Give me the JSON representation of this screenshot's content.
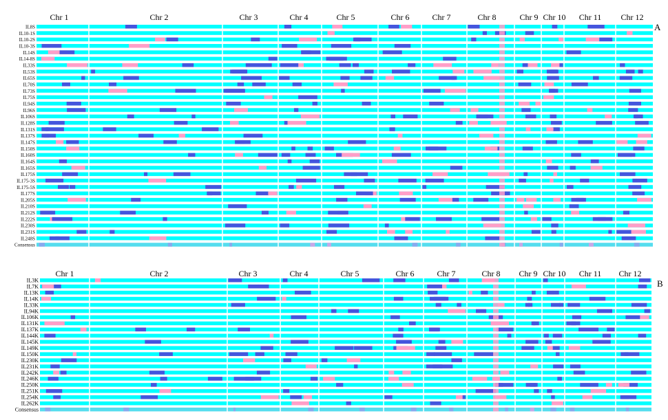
{
  "colors": {
    "background": "#ffffff",
    "base": "#00ffff",
    "introgression": "#4455dd",
    "heterozygous": "#ff9fc8",
    "separator": "#ffffff"
  },
  "panels": [
    {
      "label": "A",
      "chromosomes": [
        "Chr 1",
        "Chr 2",
        "Chr 3",
        "Chr 4",
        "Chr 5",
        "Chr 6",
        "Chr 7",
        "Chr 8",
        "Chr 9",
        "Chr 10",
        "Chr 11",
        "Chr 12"
      ],
      "lines": [
        "IL8S",
        "IL10-1S",
        "IL10-2S",
        "IL10-3S",
        "IL14S",
        "IL14-8S",
        "IL33S",
        "IL53S",
        "IL65S",
        "IL70S",
        "IL73S",
        "IL75S",
        "IL94S",
        "IL96S",
        "IL106S",
        "IL128S",
        "IL131S",
        "IL137S",
        "IL147S",
        "IL150S",
        "IL160S",
        "IL164S",
        "IL165S",
        "IL175S",
        "IL175-3S",
        "IL175-5S",
        "IL177S",
        "IL205S",
        "IL210S",
        "IL212S",
        "IL222S",
        "IL230S",
        "IL231S",
        "IL248S",
        "Consensus"
      ]
    },
    {
      "label": "B",
      "chromosomes": [
        "Chr 1",
        "Chr 2",
        "Chr 3",
        "Chr 4",
        "Chr 5",
        "Chr 6",
        "Chr 7",
        "Chr 8",
        "Chr 9",
        "Chr 10",
        "Chr 11",
        "Chr 12"
      ],
      "lines": [
        "IL3K",
        "IL7K",
        "IL13K",
        "IL14K",
        "IL33K",
        "IL94K",
        "IL106K",
        "IL131K",
        "IL137K",
        "IL144K",
        "IL145K",
        "IL149K",
        "IL150K",
        "IL230K",
        "IL231K",
        "IL242K",
        "IL246K",
        "IL250K",
        "IL251K",
        "IL254K",
        "IL262K",
        "Consensus"
      ]
    }
  ]
}
